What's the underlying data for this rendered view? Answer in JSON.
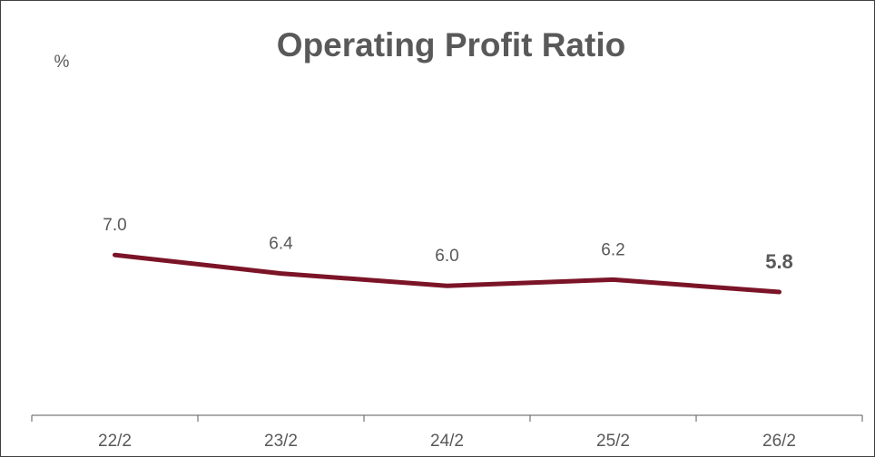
{
  "chart_data": {
    "type": "line",
    "title": "Operating Profit Ratio",
    "y_label": "%",
    "categories": [
      "22/2",
      "23/2",
      "24/2",
      "25/2",
      "26/2"
    ],
    "series": [
      {
        "name": "Operating Profit Ratio",
        "color": "#7b1427",
        "values": [
          7.0,
          6.4,
          6.0,
          6.2,
          5.8
        ],
        "value_labels": [
          "7.0",
          "6.4",
          "6.0",
          "6.2",
          "5.8"
        ]
      }
    ],
    "ylim": [
      1.8,
      14.8
    ]
  }
}
